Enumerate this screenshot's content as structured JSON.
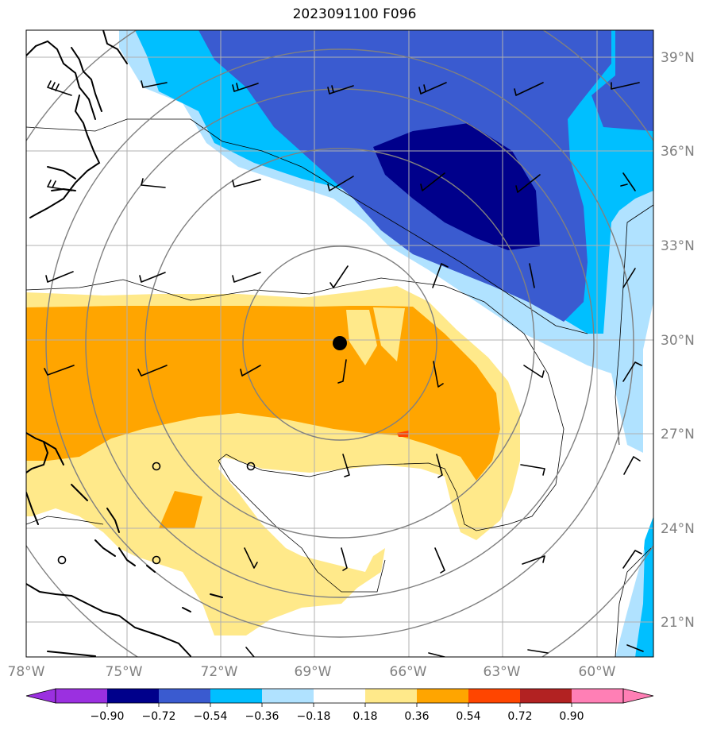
{
  "title": "2023091100 F096",
  "map": {
    "lon_range": [
      -78,
      -58.5
    ],
    "lat_range": [
      20,
      40
    ],
    "lon_ticks": [
      "78°W",
      "75°W",
      "72°W",
      "69°W",
      "66°W",
      "63°W",
      "60°W"
    ],
    "lat_ticks": [
      "39°N",
      "36°N",
      "33°N",
      "30°N",
      "27°N",
      "24°N",
      "21°N"
    ],
    "grid": true,
    "storm_center": {
      "lon": -68.3,
      "lat": 29.9
    },
    "range_rings": "concentric gray circles centered on storm",
    "colors": {
      "violet": "#9b30e0",
      "navy": "#00008b",
      "royal_blue": "#3a5bd0",
      "sky_blue": "#00bfff",
      "light_blue": "#b0e2ff",
      "yellow": "#ffe98a",
      "orange": "#ffa500",
      "red_orange": "#ff4500",
      "dark_red": "#b22222",
      "pink": "#ff7fb5",
      "grid": "#b0b0b0",
      "ring": "#808080"
    }
  },
  "colorbar": {
    "labels": [
      "−0.90",
      "−0.72",
      "−0.54",
      "−0.36",
      "−0.18",
      "0.18",
      "0.36",
      "0.54",
      "0.72",
      "0.90"
    ],
    "extend": "both"
  }
}
